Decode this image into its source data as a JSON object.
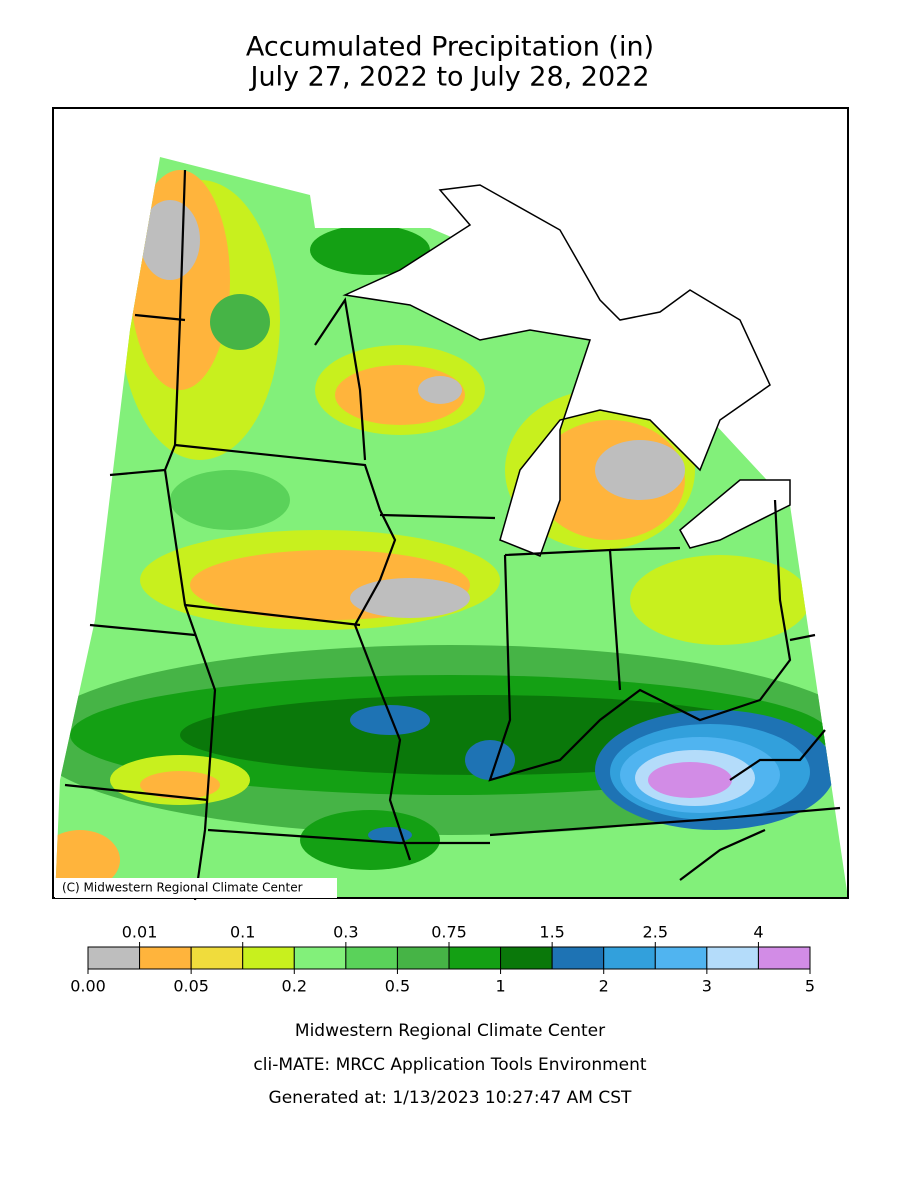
{
  "title": [
    "Accumulated Precipitation (in)",
    "July 27, 2022 to July 28, 2022"
  ],
  "copyright": "(C) Midwestern Regional Climate Center",
  "legend": {
    "ticks": [
      {
        "value": 0,
        "label": "0.00"
      },
      0.01,
      0.05,
      0.1,
      0.2,
      0.3,
      0.5,
      0.75,
      1,
      1.5,
      2,
      2.5,
      3,
      4,
      5
    ],
    "colors": [
      "#bebebe",
      "#ffb43c",
      "#f0dc3c",
      "#c8f01e",
      "#82f07a",
      "#5ad25a",
      "#46b446",
      "#14a014",
      "#0a780a",
      "#1e73b4",
      "#32a0dc",
      "#50b4f0",
      "#b4dcfa",
      "#d28ce6"
    ]
  },
  "footer": [
    "Midwestern Regional Climate Center",
    "cli-MATE: MRCC Application Tools Environment",
    "Generated at: 1/13/2023 10:27:47 AM CST"
  ]
}
